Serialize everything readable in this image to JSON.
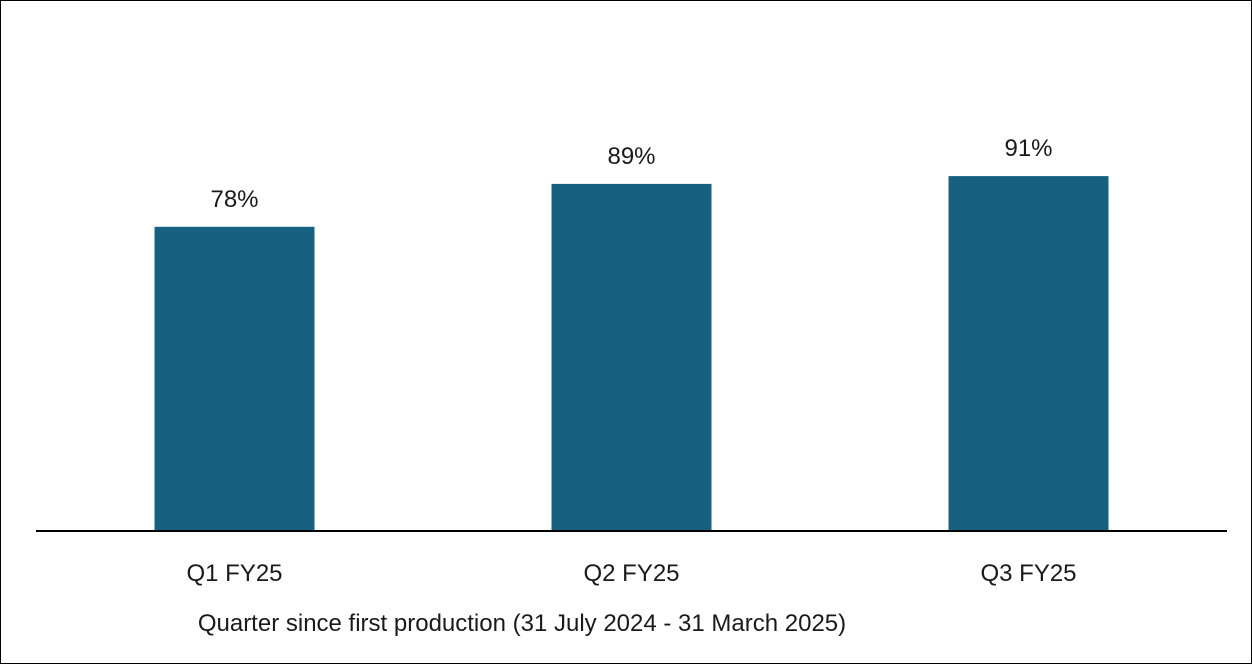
{
  "chart_data": {
    "type": "bar",
    "title": "",
    "xlabel": "Quarter since first production (31 July 2024 - 31 March 2025)",
    "ylabel": "",
    "categories": [
      "Q1 FY25",
      "Q2 FY25",
      "Q3 FY25"
    ],
    "values": [
      78,
      89,
      91
    ],
    "data_labels": [
      "78%",
      "89%",
      "91%"
    ],
    "value_unit": "%",
    "ylim": [
      0,
      100
    ],
    "grid": false,
    "legend": "none",
    "y_axis_visible": false,
    "bar_color": "#17607f",
    "axis_color": "#000000"
  }
}
